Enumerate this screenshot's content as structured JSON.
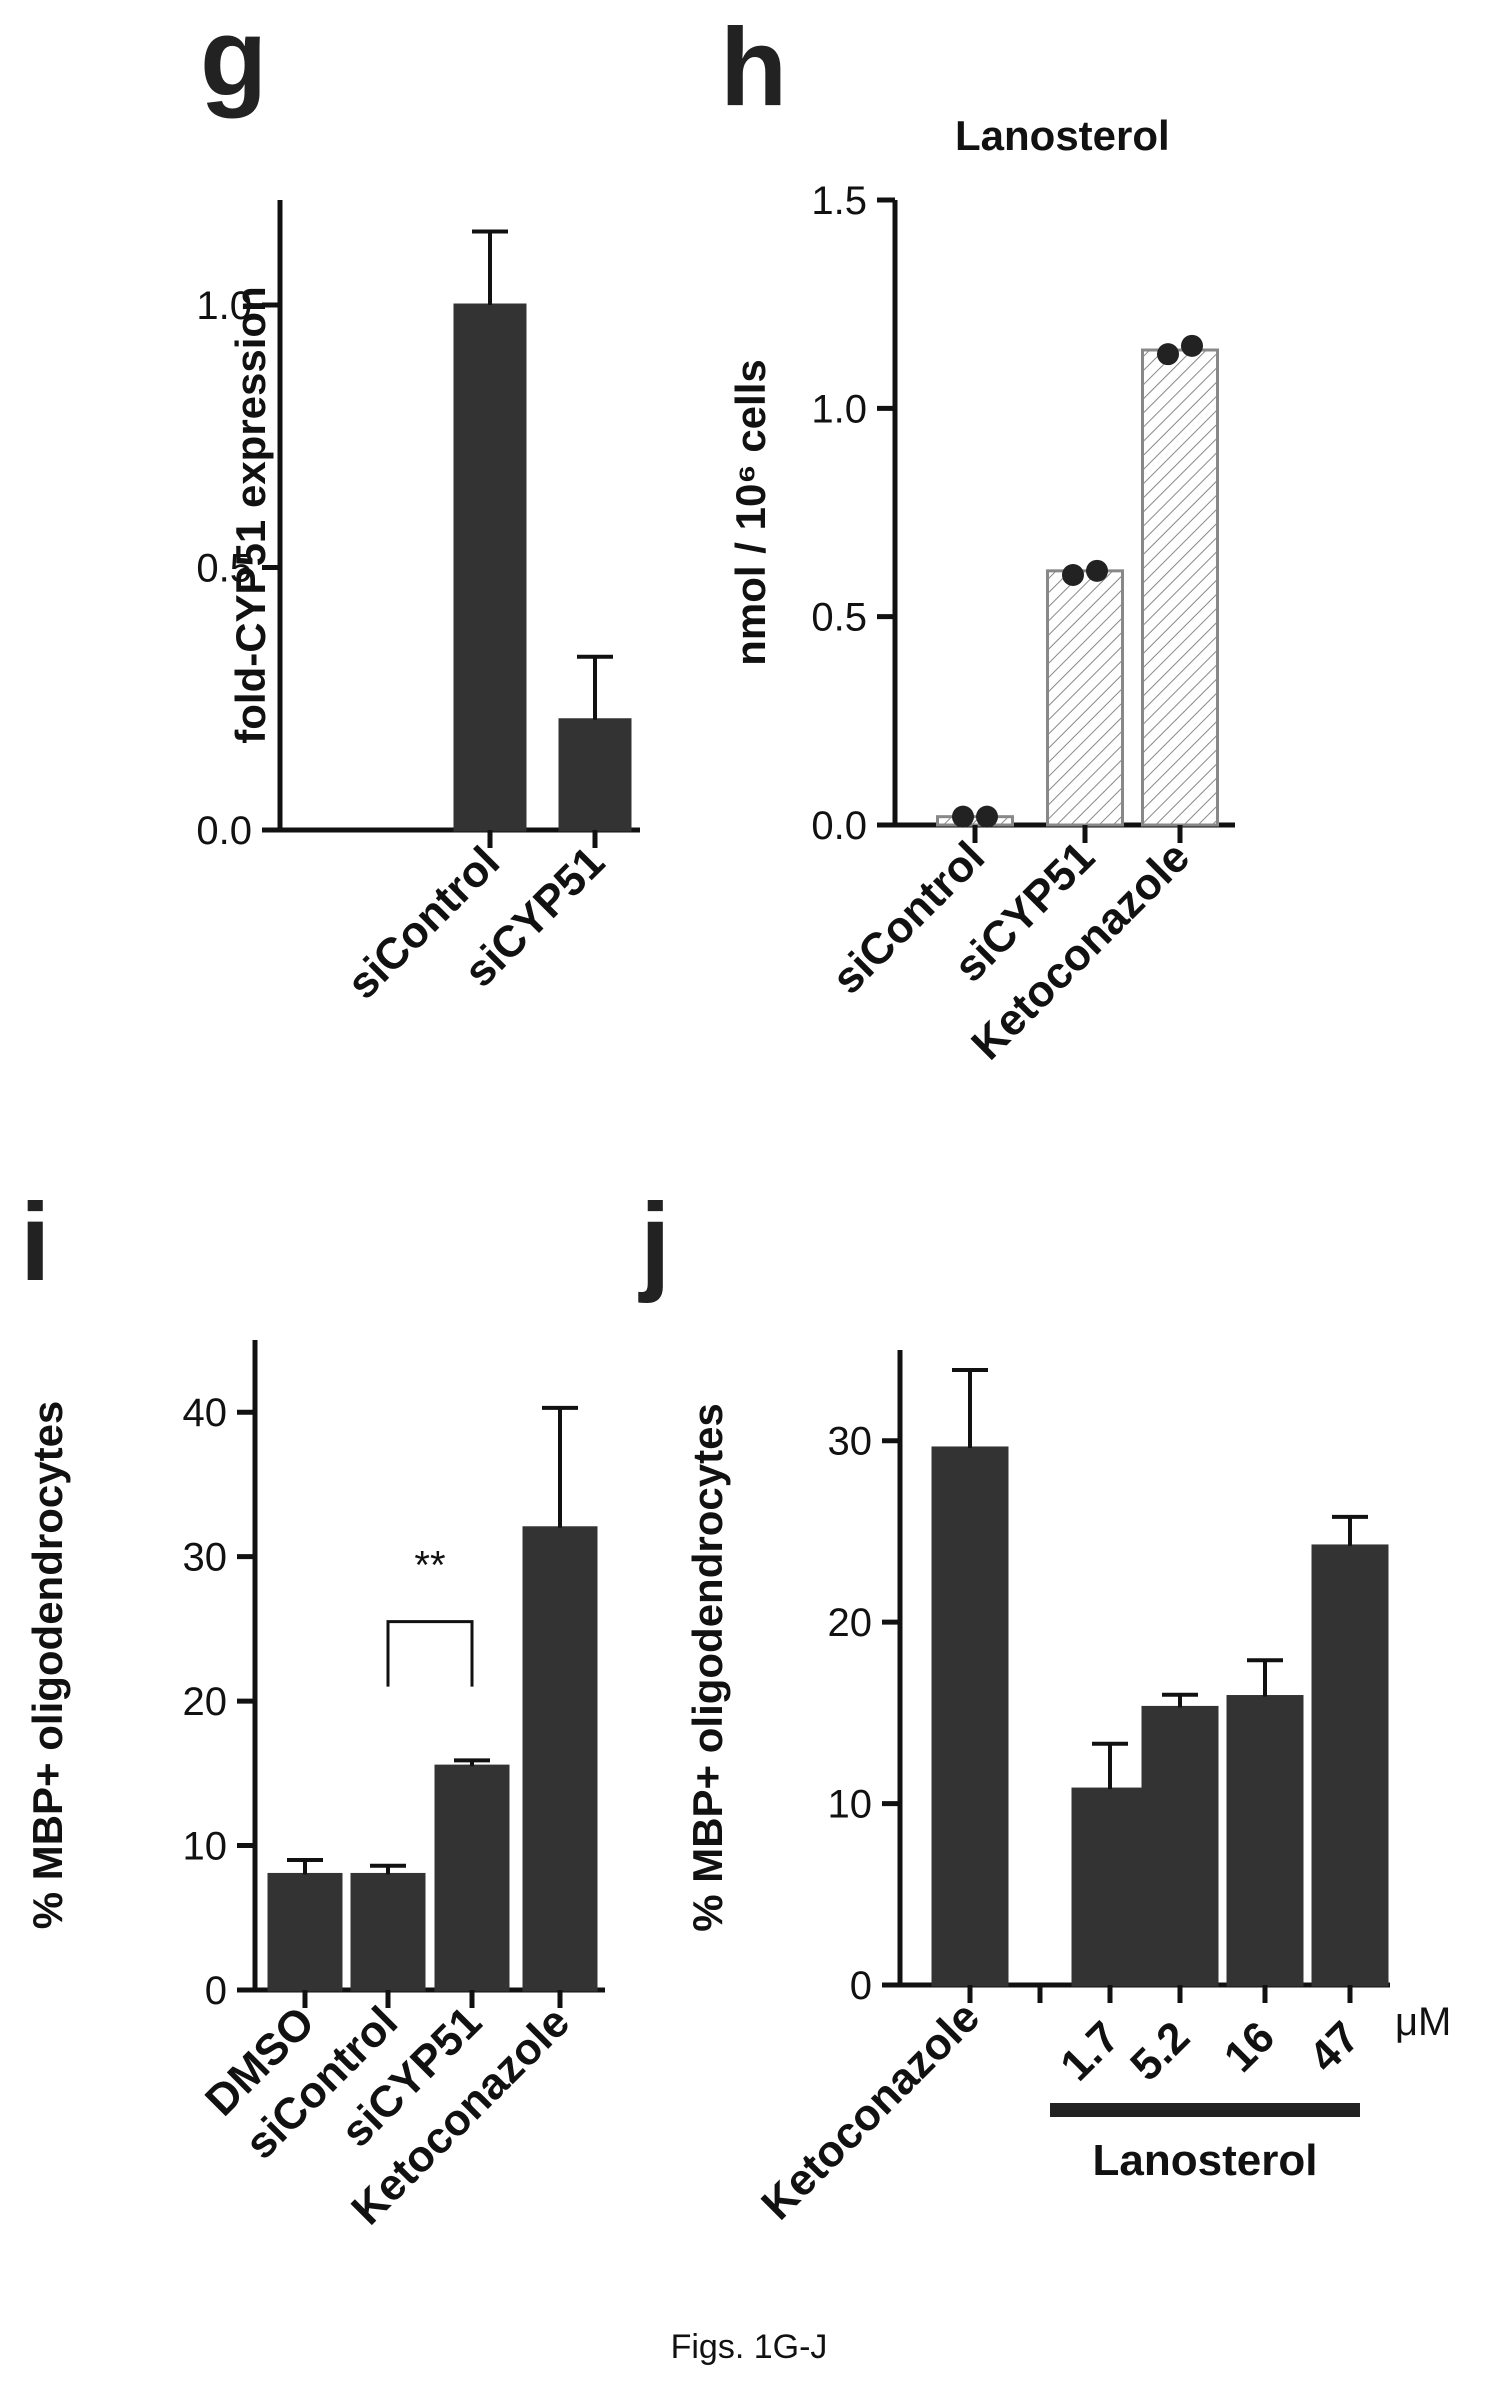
{
  "caption": "Figs. 1G-J",
  "colors": {
    "bar_dark": "#333333",
    "bar_hatch": "#888888",
    "dot": "#222222",
    "axis": "#111111"
  },
  "chart_data": [
    {
      "panel": "g",
      "type": "bar",
      "title": "",
      "ylabel": "fold-CYP51 expression",
      "ylim": [
        0,
        1.2
      ],
      "yticks": [
        "0.0",
        "0.5",
        "1.0"
      ],
      "categories": [
        "siControl",
        "siCYP51"
      ],
      "values": [
        1.0,
        0.21
      ],
      "errors": [
        0.14,
        0.12
      ],
      "bar_style": "solid"
    },
    {
      "panel": "h",
      "type": "bar",
      "title": "Lanosterol",
      "ylabel": "nmol / 10⁶ cells",
      "ylim": [
        0,
        1.5
      ],
      "yticks": [
        "0.0",
        "0.5",
        "1.0",
        "1.5"
      ],
      "categories": [
        "siControl",
        "siCYP51",
        "Ketoconazole"
      ],
      "values": [
        0.02,
        0.61,
        1.14
      ],
      "points": [
        [
          0.02,
          0.02
        ],
        [
          0.6,
          0.61
        ],
        [
          1.13,
          1.15
        ]
      ],
      "bar_style": "hatched"
    },
    {
      "panel": "i",
      "type": "bar",
      "title": "",
      "ylabel": "% MBP+ oligodendrocytes",
      "ylim": [
        0,
        45
      ],
      "yticks": [
        "0",
        "10",
        "20",
        "30",
        "40"
      ],
      "categories": [
        "DMSO",
        "siControl",
        "siCYP51",
        "Ketoconazole"
      ],
      "values": [
        8,
        8,
        15.5,
        32
      ],
      "errors": [
        1,
        0.6,
        0.4,
        8.3
      ],
      "significance": {
        "label": "**",
        "between": [
          "siControl",
          "siCYP51"
        ]
      },
      "bar_style": "solid"
    },
    {
      "panel": "j",
      "type": "bar",
      "title": "",
      "ylabel": "% MBP+ oligodendrocytes",
      "ylim": [
        0,
        35
      ],
      "yticks": [
        "0",
        "10",
        "20",
        "30"
      ],
      "categories": [
        "Ketoconazole",
        "",
        "1.7",
        "5.2",
        "16",
        "47"
      ],
      "values": [
        29.6,
        null,
        10.8,
        15.3,
        15.9,
        24.2
      ],
      "errors": [
        4.3,
        null,
        2.5,
        0.7,
        2.0,
        1.6
      ],
      "unit_label": "μM",
      "group_label": "Lanosterol",
      "bar_style": "solid"
    }
  ]
}
